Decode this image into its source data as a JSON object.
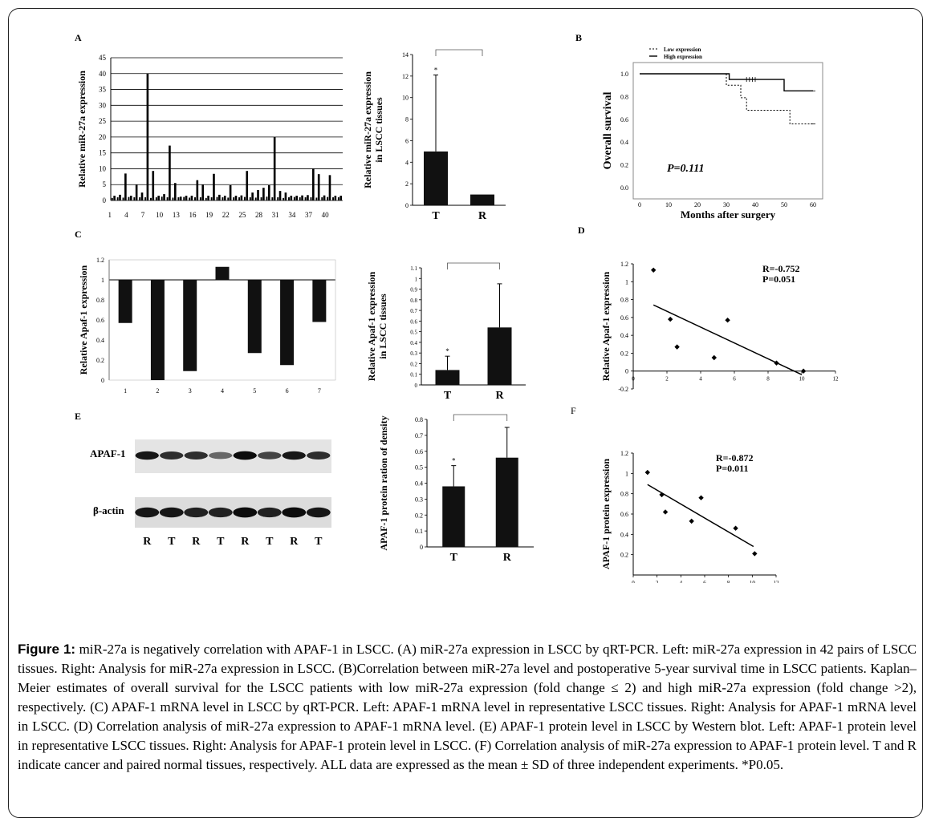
{
  "panel_labels": {
    "A": "A",
    "B": "B",
    "C": "C",
    "D": "D",
    "E": "E",
    "F": "F"
  },
  "caption": {
    "fig_label": "Figure 1:",
    "text": " miR-27a is negatively correlation with APAF-1 in LSCC. (A) miR-27a expression in LSCC by qRT-PCR. Left: miR-27a expression in 42 pairs of LSCC tissues. Right: Analysis for miR-27a expression in LSCC. (B)Correlation between miR-27a level and postoperative 5-year survival time in LSCC patients. Kaplan–Meier estimates of overall survival for the LSCC patients with low miR-27a expression (fold change ≤ 2) and high miR-27a expression (fold change >2), respectively. (C) APAF-1 mRNA level in LSCC by qRT-PCR. Left: APAF-1 mRNA level in representative LSCC tissues. Right: Analysis for APAF-1 mRNA level in LSCC. (D) Correlation analysis of miR-27a expression to APAF-1 mRNA level. (E) APAF-1 protein level in LSCC by Western blot. Left: APAF-1 protein level in representative LSCC tissues. Right: Analysis for APAF-1 protein level in LSCC. (F) Correlation analysis of miR-27a expression to APAF-1 protein level. T and R indicate cancer and paired normal tissues, respectively. ALL data are expressed as the mean ± SD of three independent experiments. *P0.05."
  },
  "blot": {
    "band1_label": "APAF-1",
    "band2_label": "β-actin",
    "lanes": [
      "R",
      "T",
      "R",
      "T",
      "R",
      "T",
      "R",
      "T"
    ],
    "apaf1_intensity": [
      0.9,
      0.8,
      0.8,
      0.55,
      0.95,
      0.7,
      0.9,
      0.8
    ],
    "actin_intensity": [
      0.9,
      0.9,
      0.85,
      0.85,
      0.95,
      0.85,
      0.95,
      0.9
    ]
  },
  "chart_data": [
    {
      "id": "A-left",
      "type": "bar",
      "ylabel": "Relative miR-27a expression",
      "ylim": [
        0,
        45
      ],
      "yticks": [
        0,
        5,
        10,
        15,
        20,
        25,
        30,
        35,
        40,
        45
      ],
      "xticks": [
        "1",
        "4",
        "7",
        "10",
        "13",
        "16",
        "19",
        "22",
        "25",
        "28",
        "31",
        "34",
        "37",
        "40"
      ],
      "grid": true,
      "categories": [
        "1",
        "2",
        "3",
        "4",
        "5",
        "6",
        "7",
        "8",
        "9",
        "10",
        "11",
        "12",
        "13",
        "14",
        "15",
        "16",
        "17",
        "18",
        "19",
        "20",
        "21",
        "22",
        "23",
        "24",
        "25",
        "26",
        "27",
        "28",
        "29",
        "30",
        "31",
        "32",
        "33",
        "34",
        "35",
        "36",
        "37",
        "38",
        "39",
        "40",
        "41",
        "42"
      ],
      "values": [
        1.5,
        1.8,
        8.5,
        1.5,
        5.0,
        2.5,
        40.0,
        9.3,
        1.5,
        2.0,
        17.3,
        5.5,
        1.2,
        1.5,
        1.5,
        6.4,
        5.0,
        1.5,
        8.4,
        1.8,
        1.5,
        4.8,
        1.5,
        1.6,
        9.3,
        2.5,
        3.3,
        4.0,
        4.8,
        20.0,
        3.0,
        2.5,
        1.5,
        1.5,
        1.6,
        1.7,
        10.0,
        8.3,
        1.6,
        8.0,
        1.5,
        1.5
      ],
      "pair_values": [
        0.8,
        1.0,
        0.9,
        1.1,
        1.0,
        1.0,
        1.0,
        0.8,
        1.0,
        1.2,
        1.0,
        0.9,
        1.0,
        1.1,
        0.9,
        1.0,
        1.0,
        0.8,
        1.0,
        1.1,
        1.0,
        0.9,
        1.0,
        1.0,
        1.1,
        1.0,
        0.9,
        1.0,
        1.2,
        1.0,
        1.0,
        0.8,
        1.0,
        1.1,
        1.0,
        1.0,
        1.0,
        0.9,
        1.0,
        1.1,
        1.0,
        1.0
      ]
    },
    {
      "id": "A-right",
      "type": "bar",
      "ylabel": "Relative miR-27a expression in LSCC tissues",
      "categories": [
        "T",
        "R"
      ],
      "values": [
        5.0,
        1.0
      ],
      "error": [
        7.1,
        0
      ],
      "ylim": [
        0,
        14
      ],
      "yticks": [
        0,
        2,
        4,
        6,
        8,
        10,
        12,
        14
      ],
      "annotation": "*"
    },
    {
      "id": "B",
      "type": "line",
      "xlabel": "Months after surgery",
      "ylabel": "Overall survival",
      "xlim": [
        0,
        60
      ],
      "ylim": [
        0,
        1.0
      ],
      "xticks": [
        0,
        10,
        20,
        30,
        40,
        50,
        60
      ],
      "yticks": [
        0,
        0.2,
        0.4,
        0.6,
        0.8,
        1.0
      ],
      "legend": [
        "Low expression",
        "High expression"
      ],
      "legend_position": "top-left",
      "annotation": "P=0.111",
      "series": [
        {
          "name": "Low expression",
          "x": [
            0,
            30,
            30,
            35,
            35,
            37,
            37,
            52,
            52,
            60
          ],
          "y": [
            1.0,
            1.0,
            0.9,
            0.9,
            0.79,
            0.79,
            0.68,
            0.68,
            0.56,
            0.56
          ]
        },
        {
          "name": "High expression",
          "x": [
            0,
            31,
            31,
            50,
            50,
            60
          ],
          "y": [
            1.0,
            1.0,
            0.95,
            0.95,
            0.85,
            0.85
          ]
        }
      ]
    },
    {
      "id": "C-left",
      "type": "bar",
      "ylabel": "Relative Apaf-1 expression",
      "ylim": [
        0,
        1.2
      ],
      "yticks": [
        0,
        0.2,
        0.4,
        0.6,
        0.8,
        1,
        1.2
      ],
      "baseline": 1,
      "categories": [
        "1",
        "2",
        "3",
        "4",
        "5",
        "6",
        "7"
      ],
      "values": [
        0.57,
        0.0,
        0.09,
        1.13,
        0.27,
        0.15,
        0.58
      ]
    },
    {
      "id": "C-right",
      "type": "bar",
      "ylabel": "Relative Apaf-1 expression in LSCC tissues",
      "categories": [
        "T",
        "R"
      ],
      "values": [
        0.14,
        0.54
      ],
      "error": [
        0.13,
        0.41
      ],
      "ylim": [
        0,
        1.1
      ],
      "yticks": [
        0,
        0.1,
        0.2,
        0.3,
        0.4,
        0.5,
        0.6,
        0.7,
        0.8,
        0.9,
        1,
        1.1
      ],
      "annotation": "*"
    },
    {
      "id": "D",
      "type": "scatter",
      "ylabel": "Relative Apaf-1 expression",
      "xlim": [
        0,
        12
      ],
      "ylim": [
        -0.2,
        1.2
      ],
      "xticks": [
        0,
        2,
        4,
        6,
        8,
        10,
        12
      ],
      "yticks": [
        -0.2,
        0,
        0.2,
        0.4,
        0.6,
        0.8,
        1,
        1.2
      ],
      "annotation": [
        "R=-0.752",
        "P=0.051"
      ],
      "x": [
        1.2,
        2.2,
        2.6,
        4.8,
        5.6,
        8.5,
        10.1
      ],
      "y": [
        1.13,
        0.58,
        0.27,
        0.15,
        0.57,
        0.09,
        0.0
      ],
      "fit": {
        "x": [
          1.2,
          10.0
        ],
        "y": [
          0.74,
          -0.04
        ]
      }
    },
    {
      "id": "E-right",
      "type": "bar",
      "ylabel": "APAF-1 protein ration of density",
      "categories": [
        "T",
        "R"
      ],
      "values": [
        0.38,
        0.56
      ],
      "error": [
        0.13,
        0.19
      ],
      "ylim": [
        0,
        0.8
      ],
      "yticks": [
        0,
        0.1,
        0.2,
        0.3,
        0.4,
        0.5,
        0.6,
        0.7,
        0.8
      ],
      "annotation": "*"
    },
    {
      "id": "F",
      "type": "scatter",
      "ylabel": "APAF-1 protein expression",
      "xlim": [
        0,
        12
      ],
      "ylim": [
        0,
        1.2
      ],
      "xticks": [
        0,
        2,
        4,
        6,
        8,
        10,
        12
      ],
      "yticks": [
        0.2,
        0.4,
        0.6,
        0.8,
        1,
        1.2
      ],
      "annotation": [
        "R=-0.872",
        "P=0.011"
      ],
      "x": [
        1.2,
        2.4,
        2.7,
        4.9,
        5.7,
        8.6,
        10.2
      ],
      "y": [
        1.01,
        0.79,
        0.62,
        0.53,
        0.76,
        0.46,
        0.21
      ],
      "fit": {
        "x": [
          1.2,
          10.1
        ],
        "y": [
          0.89,
          0.28
        ]
      }
    }
  ]
}
